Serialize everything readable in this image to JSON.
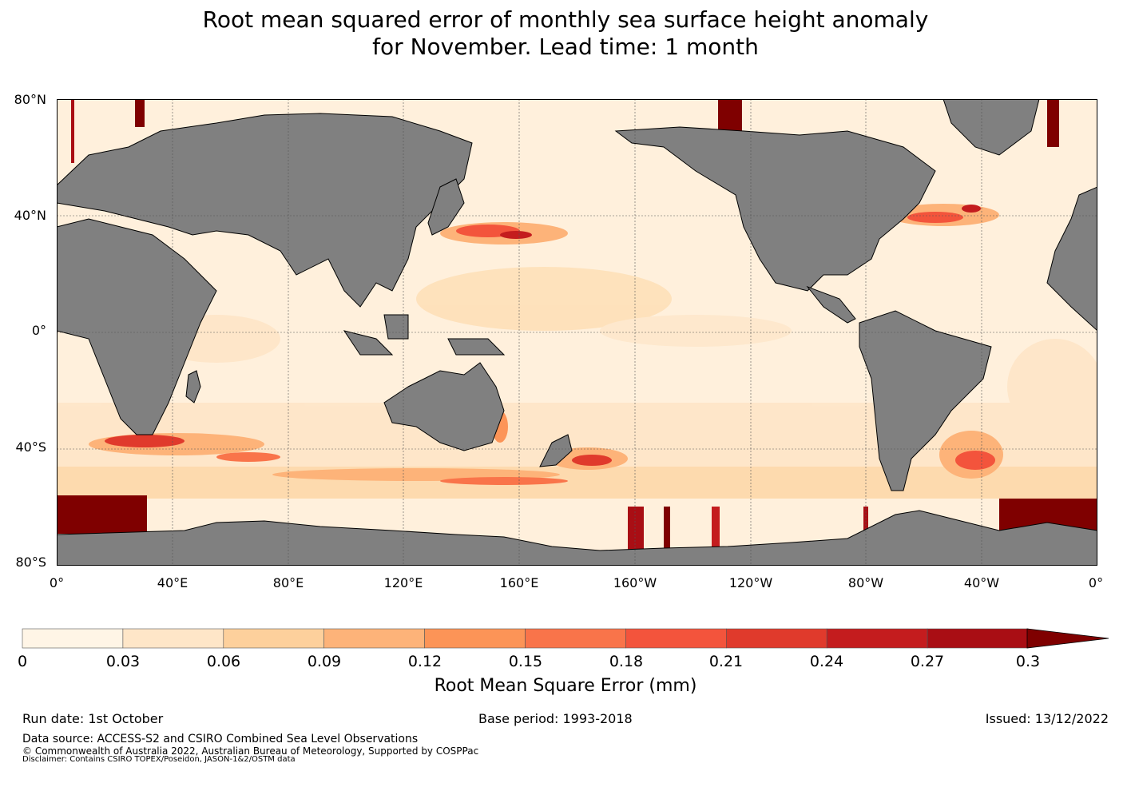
{
  "title": {
    "line1": "Root mean squared error of monthly sea surface height anomaly",
    "line2": "for November. Lead time: 1 month"
  },
  "map": {
    "lat_labels": [
      "80°N",
      "40°N",
      "0°",
      "40°S",
      "80°S"
    ],
    "lon_labels": [
      "0°",
      "40°E",
      "80°E",
      "120°E",
      "160°E",
      "160°W",
      "120°W",
      "80°W",
      "40°W",
      "0°"
    ],
    "land_color": "#808080",
    "ocean_base_color": "#fff0dc"
  },
  "colorbar": {
    "label": "Root Mean Square Error (mm)",
    "ticks": [
      "0",
      "0.03",
      "0.06",
      "0.09",
      "0.12",
      "0.15",
      "0.18",
      "0.21",
      "0.24",
      "0.27",
      "0.3"
    ],
    "colors": [
      "#fff5e6",
      "#fee6c8",
      "#fdd09c",
      "#fdb379",
      "#fc9457",
      "#f9744a",
      "#f3543c",
      "#e03a2c",
      "#c41c1e",
      "#a90e14",
      "#7f0000"
    ]
  },
  "footer": {
    "run_date": "Run date: 1st October",
    "base_period": "Base period: 1993-2018",
    "issued": "Issued: 13/12/2022",
    "source": "Data source: ACCESS-S2 and CSIRO Combined Sea Level Observations",
    "copyright": "© Commonwealth of Australia 2022, Australian Bureau of Meteorology, Supported by COSPPac",
    "disclaimer": "Disclaimer: Contains CSIRO TOPEX/Poseidon, JASON-1&2/OSTM data"
  }
}
